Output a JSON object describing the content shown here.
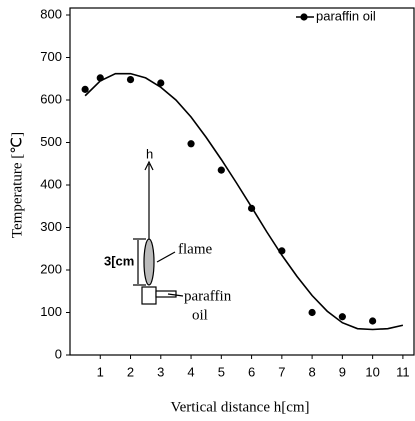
{
  "chart_data": {
    "type": "scatter",
    "x_label": "Vertical distance h[cm]",
    "y_label": "Temperature [℃]",
    "xlim": [
      0,
      11.4
    ],
    "ylim": [
      0,
      800
    ],
    "xticks": [
      1,
      2,
      3,
      4,
      5,
      6,
      7,
      8,
      9,
      10,
      11
    ],
    "yticks": [
      0,
      100,
      200,
      300,
      400,
      500,
      600,
      700,
      800
    ],
    "legend": "upper right",
    "series": [
      {
        "name": "paraffin oil",
        "color": "#000000",
        "x": [
          0.5,
          1,
          2,
          3,
          4,
          5,
          6,
          7,
          8,
          9,
          10
        ],
        "values": [
          625,
          652,
          648,
          640,
          497,
          435,
          345,
          245,
          100,
          90,
          80
        ]
      }
    ],
    "curve": {
      "color": "#000000",
      "x": [
        0.5,
        1,
        1.5,
        2,
        2.5,
        3,
        3.5,
        4,
        4.5,
        5,
        5.5,
        6,
        6.5,
        7,
        7.5,
        8,
        8.5,
        9,
        9.5,
        10,
        10.5,
        11
      ],
      "values": [
        610,
        645,
        662,
        662,
        652,
        630,
        600,
        560,
        512,
        460,
        405,
        348,
        290,
        235,
        185,
        140,
        103,
        76,
        62,
        60,
        62,
        70
      ]
    },
    "annotations": {
      "h": "h",
      "height": "3[cm",
      "flame": "flame",
      "fuel_1": "paraffin",
      "fuel_2": "oil"
    }
  }
}
